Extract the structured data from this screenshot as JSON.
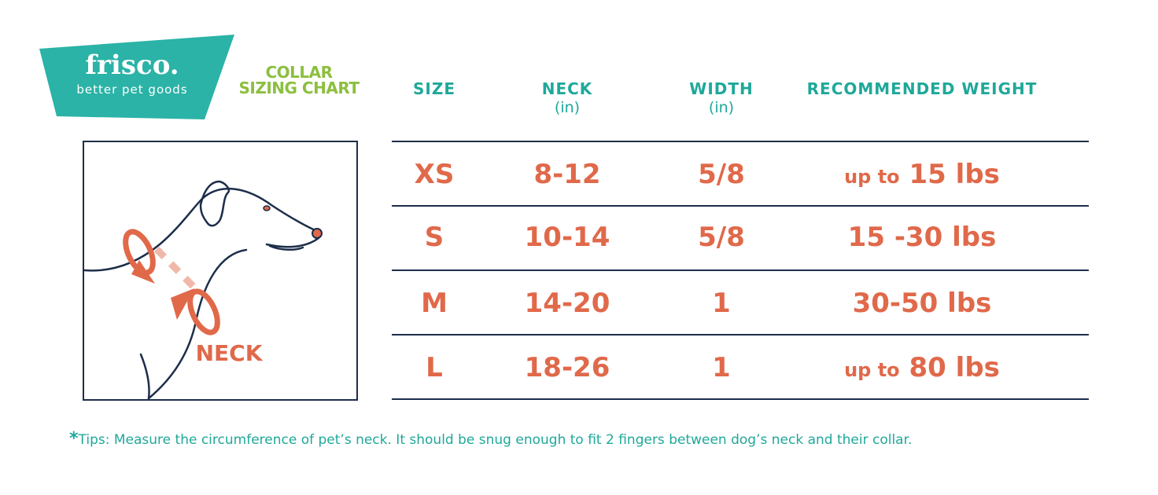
{
  "brand": {
    "name": "frisco.",
    "tagline": "better pet goods",
    "color": "#2ab3a6"
  },
  "title": {
    "line1": "COLLAR",
    "line2": "SIZING CHART",
    "color": "#8cbf3f"
  },
  "columns": [
    {
      "label": "SIZE",
      "unit": ""
    },
    {
      "label": "NECK",
      "unit": "(in)"
    },
    {
      "label": "WIDTH",
      "unit": "(in)"
    },
    {
      "label": "RECOMMENDED WEIGHT",
      "unit": ""
    }
  ],
  "rows": [
    {
      "size": "XS",
      "neck": "8-12",
      "width": "5/8",
      "weight_prefix": "up to",
      "weight": "15 lbs"
    },
    {
      "size": "S",
      "neck": "10-14",
      "width": "5/8",
      "weight_prefix": "",
      "weight": "15 -30 lbs"
    },
    {
      "size": "M",
      "neck": "14-20",
      "width": "1",
      "weight_prefix": "",
      "weight": "30-50 lbs"
    },
    {
      "size": "L",
      "neck": "18-26",
      "width": "1",
      "weight_prefix": "up to",
      "weight": "80 lbs"
    }
  ],
  "illustration": {
    "label": "NECK",
    "accent": "#e0694a",
    "line_color": "#1c2e4a"
  },
  "tips": {
    "asterisk": "*",
    "text": "Tips: Measure the circumference of pet’s neck. It should be snug enough to fit 2 fingers between dog’s neck and their collar."
  }
}
